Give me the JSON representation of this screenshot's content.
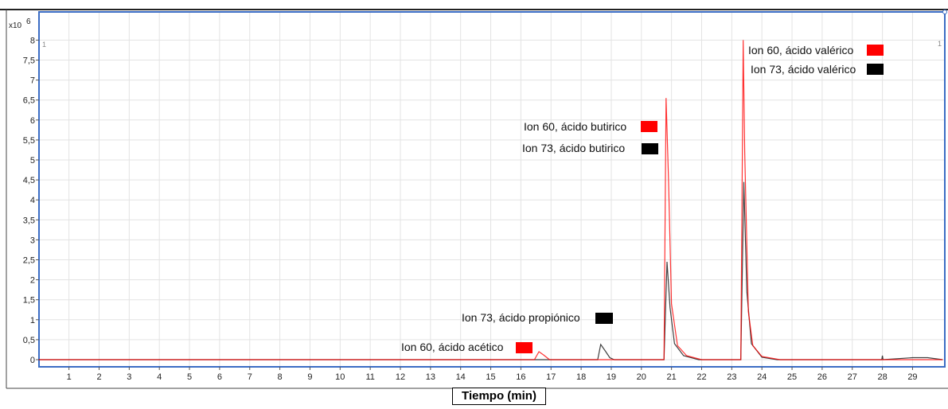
{
  "chart_data": {
    "type": "line",
    "xlabel": "Tiempo (min)",
    "ylabel": "",
    "y_multiplier_label": "x10",
    "y_multiplier_exponent": "6",
    "corner_labels": [
      "1",
      "1"
    ],
    "xlim": [
      0,
      30
    ],
    "ylim": [
      -0.2,
      8.05
    ],
    "x_ticks": [
      "1",
      "2",
      "3",
      "4",
      "5",
      "6",
      "7",
      "8",
      "9",
      "10",
      "11",
      "12",
      "13",
      "14",
      "15",
      "16",
      "17",
      "18",
      "19",
      "20",
      "21",
      "22",
      "23",
      "24",
      "25",
      "26",
      "27",
      "28",
      "29"
    ],
    "y_ticks": [
      {
        "v": 0,
        "label": "0"
      },
      {
        "v": 0.5,
        "label": "0,5"
      },
      {
        "v": 1,
        "label": "1"
      },
      {
        "v": 1.5,
        "label": "1,5"
      },
      {
        "v": 2,
        "label": "2"
      },
      {
        "v": 2.5,
        "label": "2,5"
      },
      {
        "v": 3,
        "label": "3"
      },
      {
        "v": 3.5,
        "label": "3,5"
      },
      {
        "v": 4,
        "label": "4"
      },
      {
        "v": 4.5,
        "label": "4,5"
      },
      {
        "v": 5,
        "label": "5"
      },
      {
        "v": 5.5,
        "label": "5,5"
      },
      {
        "v": 6,
        "label": "6"
      },
      {
        "v": 6.5,
        "label": "6,5"
      },
      {
        "v": 7,
        "label": "7"
      },
      {
        "v": 7.5,
        "label": "7,5"
      },
      {
        "v": 8,
        "label": "8"
      }
    ],
    "grid": true,
    "colors": {
      "ion60": "#ff0000",
      "ion73": "#000000",
      "frame": "#3b6cc4",
      "grid": "#e3e3e3"
    },
    "series": [
      {
        "ion": "60",
        "color": "#ff0000",
        "x": [
          0,
          1.5,
          9.5,
          16.45,
          16.6,
          16.75,
          16.95,
          18.6,
          18.75,
          20.75,
          20.82,
          20.9,
          21.0,
          21.2,
          21.5,
          22.0,
          23.3,
          23.38,
          23.43,
          23.55,
          23.7,
          24.0,
          24.6,
          26.5,
          29.0,
          30.0
        ],
        "y": [
          0,
          0,
          0,
          0,
          0.2,
          0.12,
          0,
          0,
          0,
          0,
          6.55,
          4.5,
          1.4,
          0.35,
          0.1,
          0,
          0,
          8.0,
          5.2,
          1.2,
          0.35,
          0.08,
          0,
          0,
          0,
          0
        ]
      },
      {
        "ion": "73",
        "color": "#000000",
        "x": [
          0,
          16.5,
          18.55,
          18.65,
          18.8,
          18.95,
          19.1,
          20.75,
          20.85,
          20.95,
          21.1,
          21.4,
          21.9,
          23.3,
          23.4,
          23.5,
          23.65,
          24.0,
          24.5,
          27.98,
          28.0,
          28.02,
          29.0,
          29.5,
          30.0
        ],
        "y": [
          0,
          0,
          0,
          0.38,
          0.22,
          0.05,
          0,
          0,
          2.45,
          1.3,
          0.4,
          0.1,
          0,
          0,
          4.45,
          1.7,
          0.4,
          0.06,
          0,
          0,
          0.1,
          0,
          0.05,
          0.05,
          0
        ]
      }
    ],
    "annotations": [
      {
        "id": "ion60-valerico",
        "text": "Ion 60, ácido valérico",
        "marker": "#ff0000"
      },
      {
        "id": "ion73-valerico",
        "text": "Ion 73, ácido valérico",
        "marker": "#000000"
      },
      {
        "id": "ion60-butirico",
        "text": "Ion 60, ácido butirico",
        "marker": "#ff0000"
      },
      {
        "id": "ion73-butirico",
        "text": "Ion 73, ácido butirico",
        "marker": "#000000"
      },
      {
        "id": "ion73-propionico",
        "text": "Ion 73, ácido propiónico",
        "marker": "#000000"
      },
      {
        "id": "ion60-acetico",
        "text": "Ion 60, ácido acético",
        "marker": "#ff0000"
      }
    ]
  }
}
